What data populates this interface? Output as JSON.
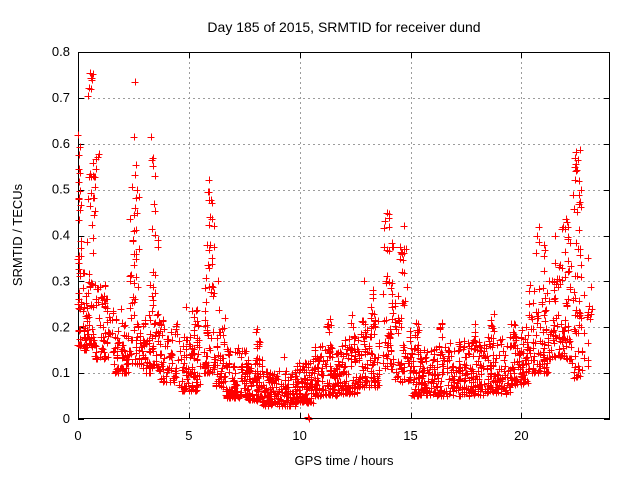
{
  "page": {
    "background": "#ffffff"
  },
  "chart_data": {
    "type": "scatter",
    "title": "Day 185 of 2015, SRMTID for receiver dund",
    "xlabel": "GPS time / hours",
    "ylabel": "SRMTID / TECUs",
    "xlim": [
      0,
      24
    ],
    "ylim": [
      0,
      0.8
    ],
    "xticks": [
      0,
      5,
      10,
      15,
      20
    ],
    "xtick_labels": [
      "0",
      "5",
      "10",
      "15",
      "20"
    ],
    "yticks": [
      0,
      0.1,
      0.2,
      0.3,
      0.4,
      0.5,
      0.6,
      0.7,
      0.8
    ],
    "ytick_labels": [
      "0",
      "0.1",
      "0.2",
      "0.3",
      "0.4",
      "0.5",
      "0.6",
      "0.7",
      "0.8"
    ],
    "grid": true,
    "legend": "none",
    "marker": {
      "shape": "plus",
      "color": "#ff0000",
      "size": 7,
      "stroke_width": 1
    },
    "axis_color": "#000000",
    "grid_color": "#9c9c9c",
    "text_color": "#000000",
    "seed": 42,
    "clusters_format": "[xmin,xmax,ymin,ymax,count,bottom_bias_power]",
    "clusters": [
      [
        0.0,
        0.15,
        0.16,
        0.63,
        26,
        2.2
      ],
      [
        0.02,
        0.12,
        0.35,
        0.62,
        8,
        1.0
      ],
      [
        0.15,
        0.75,
        0.15,
        0.32,
        55,
        1.6
      ],
      [
        0.4,
        0.75,
        0.35,
        0.56,
        18,
        1.0
      ],
      [
        0.45,
        0.7,
        0.7,
        0.76,
        5,
        1.0
      ],
      [
        0.75,
        1.0,
        0.5,
        0.6,
        6,
        1.0
      ],
      [
        0.75,
        1.6,
        0.13,
        0.3,
        60,
        1.8
      ],
      [
        1.6,
        2.35,
        0.1,
        0.22,
        60,
        1.7
      ],
      [
        2.35,
        2.75,
        0.12,
        0.5,
        48,
        2.0
      ],
      [
        2.4,
        2.72,
        0.5,
        0.56,
        4,
        1.0
      ],
      [
        2.75,
        3.25,
        0.1,
        0.24,
        40,
        1.6
      ],
      [
        3.25,
        3.65,
        0.11,
        0.47,
        42,
        2.0
      ],
      [
        3.3,
        3.55,
        0.5,
        0.57,
        3,
        1.0
      ],
      [
        3.65,
        4.5,
        0.08,
        0.22,
        65,
        1.8
      ],
      [
        4.5,
        5.5,
        0.06,
        0.18,
        75,
        1.7
      ],
      [
        5.0,
        5.45,
        0.14,
        0.24,
        18,
        1.3
      ],
      [
        5.65,
        6.15,
        0.1,
        0.44,
        55,
        2.0
      ],
      [
        5.8,
        6.05,
        0.44,
        0.5,
        4,
        1.0
      ],
      [
        6.15,
        6.65,
        0.07,
        0.24,
        45,
        1.8
      ],
      [
        6.65,
        7.6,
        0.045,
        0.155,
        95,
        1.6
      ],
      [
        7.6,
        8.35,
        0.04,
        0.13,
        85,
        1.6
      ],
      [
        8.0,
        8.2,
        0.13,
        0.2,
        10,
        1.2
      ],
      [
        8.35,
        9.85,
        0.028,
        0.105,
        140,
        1.5
      ],
      [
        9.85,
        10.6,
        0.035,
        0.125,
        85,
        1.5
      ],
      [
        10.6,
        11.7,
        0.05,
        0.16,
        105,
        1.6
      ],
      [
        11.2,
        11.45,
        0.15,
        0.22,
        8,
        1.0
      ],
      [
        11.7,
        12.6,
        0.055,
        0.175,
        95,
        1.6
      ],
      [
        12.3,
        12.5,
        0.17,
        0.23,
        6,
        1.0
      ],
      [
        12.6,
        13.6,
        0.07,
        0.22,
        95,
        1.7
      ],
      [
        13.2,
        13.45,
        0.2,
        0.285,
        8,
        1.0
      ],
      [
        13.75,
        14.25,
        0.11,
        0.4,
        48,
        1.9
      ],
      [
        13.8,
        14.05,
        0.4,
        0.455,
        6,
        1.0
      ],
      [
        14.25,
        15.0,
        0.08,
        0.28,
        55,
        1.8
      ],
      [
        14.5,
        14.85,
        0.28,
        0.385,
        12,
        1.0
      ],
      [
        15.0,
        16.0,
        0.05,
        0.16,
        90,
        1.6
      ],
      [
        15.2,
        15.45,
        0.16,
        0.245,
        8,
        1.1
      ],
      [
        16.0,
        17.3,
        0.05,
        0.17,
        110,
        1.6
      ],
      [
        16.25,
        16.45,
        0.17,
        0.225,
        6,
        1.0
      ],
      [
        17.3,
        18.4,
        0.05,
        0.17,
        100,
        1.6
      ],
      [
        17.8,
        18.0,
        0.16,
        0.21,
        6,
        1.0
      ],
      [
        18.4,
        19.5,
        0.055,
        0.18,
        100,
        1.6
      ],
      [
        18.6,
        18.8,
        0.17,
        0.235,
        7,
        1.0
      ],
      [
        19.5,
        20.3,
        0.075,
        0.21,
        80,
        1.6
      ],
      [
        20.3,
        21.2,
        0.1,
        0.3,
        85,
        1.7
      ],
      [
        20.6,
        21.1,
        0.3,
        0.42,
        8,
        1.0
      ],
      [
        21.2,
        22.25,
        0.13,
        0.35,
        85,
        1.6
      ],
      [
        21.85,
        22.2,
        0.32,
        0.45,
        12,
        1.0
      ],
      [
        22.3,
        22.7,
        0.22,
        0.5,
        30,
        1.5
      ],
      [
        22.38,
        22.65,
        0.5,
        0.59,
        10,
        1.0
      ],
      [
        22.3,
        22.8,
        0.09,
        0.22,
        22,
        1.3
      ],
      [
        22.8,
        23.2,
        0.11,
        0.3,
        14,
        1.4
      ]
    ],
    "outlier_points": [
      [
        0.55,
        0.755
      ],
      [
        0.63,
        0.74
      ],
      [
        0.58,
        0.72
      ],
      [
        0.02,
        0.62
      ],
      [
        0.03,
        0.575
      ],
      [
        2.57,
        0.735
      ],
      [
        2.52,
        0.615
      ],
      [
        3.28,
        0.615
      ],
      [
        3.33,
        0.565
      ],
      [
        1.95,
        0.24
      ],
      [
        4.85,
        0.245
      ],
      [
        5.9,
        0.52
      ],
      [
        6.05,
        0.47
      ],
      [
        6.3,
        0.3
      ],
      [
        9.3,
        0.135
      ],
      [
        12.9,
        0.3
      ],
      [
        10.38,
        0.004
      ],
      [
        10.44,
        0.0
      ],
      [
        14.7,
        0.42
      ],
      [
        21.5,
        0.4
      ],
      [
        23.0,
        0.35
      ]
    ]
  }
}
